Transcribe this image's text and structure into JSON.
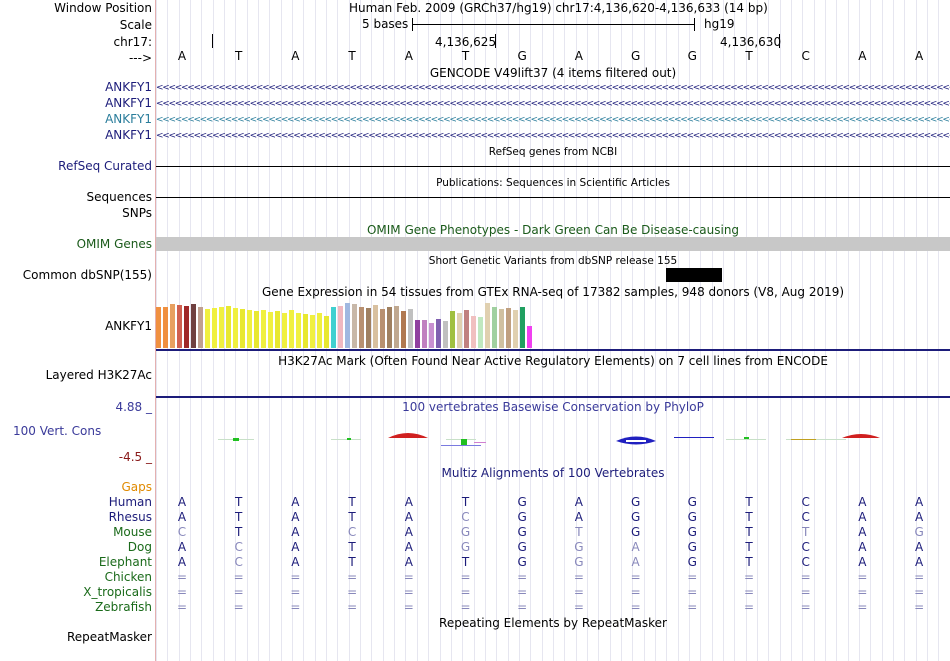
{
  "colors": {
    "navy": "#1c1c7a",
    "teal": "#2a7d9b",
    "omim_green": "#1a5a1a",
    "gaps_orange": "#e08a00",
    "species_green": "#1a6a1a",
    "phylo_label": "#3a3a9a",
    "phylo_neg": "#8a1a1a",
    "multiz_dim": "#8888bb"
  },
  "header": {
    "window_position_label": "Window Position",
    "window_position_value": "Human Feb. 2009 (GRCh37/hg19)   chr17:4,136,620-4,136,633 (14 bp)",
    "scale_label": "Scale",
    "scale_bases": "5 bases",
    "scale_assembly": "hg19",
    "chrom_label": "chr17:",
    "pos_1": "4,136,625",
    "pos_2": "4,136,630",
    "strand_label": "--->",
    "bases": [
      "A",
      "T",
      "A",
      "T",
      "A",
      "T",
      "G",
      "A",
      "G",
      "G",
      "T",
      "C",
      "A",
      "A"
    ]
  },
  "tracks": {
    "gencode_title": "GENCODE V49lift37 (4 items filtered out)",
    "gencode_items": [
      {
        "name": "ANKFY1",
        "color": "#1c1c7a"
      },
      {
        "name": "ANKFY1",
        "color": "#1c1c7a"
      },
      {
        "name": "ANKFY1",
        "color": "#2a7d9b"
      },
      {
        "name": "ANKFY1",
        "color": "#1c1c7a"
      }
    ],
    "arrow_text": "<<<<<<<<<<<<<<<<<<<<<<<<<<<<<<<<<<<<<<<<<<<<<<<<<<<<<<<<<<<<<<<<<<<<<<<<<<<<<<<<<<<<<<<<<<<<<<<<<<<<<<<<<<<<<<<<<<<<<<<<<<<<<<<<<<<<<<<<<<<<<<<<<<<<<<<<<<",
    "refseq_title": "RefSeq genes from NCBI",
    "refseq_label": "RefSeq Curated",
    "publications_title": "Publications: Sequences in Scientific Articles",
    "sequences_label": "Sequences",
    "snps_label": "SNPs",
    "omim_title": "OMIM Gene Phenotypes - Dark Green Can Be Disease-causing",
    "omim_label": "OMIM Genes",
    "dbsnp_title": "Short Genetic Variants from dbSNP release 155",
    "dbsnp_label": "Common dbSNP(155)",
    "gtex_title": "Gene Expression in 54 tissues from GTEx RNA-seq of 17382 samples, 948 donors (V8, Aug 2019)",
    "gtex_label": "ANKFY1",
    "h3k_title": "H3K27Ac Mark (Often Found Near Active Regulatory Elements) on 7 cell lines from ENCODE",
    "h3k_label": "Layered H3K27Ac",
    "phylop_title": "100 vertebrates Basewise Conservation by PhyloP",
    "phylop_max": "4.88 _",
    "phylop_label": "100 Vert. Cons",
    "phylop_min": "-4.5 _",
    "multiz_title": "Multiz Alignments of 100 Vertebrates",
    "gaps_label": "Gaps",
    "repeat_title": "Repeating Elements by RepeatMasker",
    "repeat_label": "RepeatMasker"
  },
  "gtex": {
    "values": [
      0.9,
      0.9,
      0.95,
      0.93,
      0.92,
      0.95,
      0.9,
      0.85,
      0.88,
      0.9,
      0.92,
      0.88,
      0.85,
      0.82,
      0.8,
      0.82,
      0.78,
      0.8,
      0.75,
      0.82,
      0.76,
      0.74,
      0.72,
      0.75,
      0.7,
      0.9,
      0.92,
      0.98,
      0.95,
      0.9,
      0.88,
      0.94,
      0.85,
      0.9,
      0.92,
      0.8,
      0.85,
      0.6,
      0.6,
      0.55,
      0.62,
      0.58,
      0.8,
      0.75,
      0.82,
      0.7,
      0.68,
      0.98,
      0.9,
      0.85,
      0.88,
      0.82,
      0.9,
      0.48
    ],
    "colors": [
      "#f09040",
      "#f09040",
      "#e8a060",
      "#d06050",
      "#a02828",
      "#704040",
      "#c0a090",
      "#f0f040",
      "#f0f040",
      "#f0f040",
      "#e8e830",
      "#f0f040",
      "#e8e830",
      "#f0f040",
      "#e8e830",
      "#f0f040",
      "#f0f040",
      "#e8e830",
      "#f0f040",
      "#f0f040",
      "#f0f040",
      "#e8e830",
      "#f0f040",
      "#f0f040",
      "#e8e830",
      "#40d0d0",
      "#f0b8c0",
      "#a0b8e0",
      "#c8b8a8",
      "#b89070",
      "#a08060",
      "#d8c0a0",
      "#b89070",
      "#a08060",
      "#c0a890",
      "#b07850",
      "#c0c0c0",
      "#9040a0",
      "#c080c0",
      "#c890d0",
      "#8060b0",
      "#c0c0c0",
      "#a0c040",
      "#e0d0b0",
      "#c08080",
      "#f0c0c0",
      "#c0e8c0",
      "#e0d0b0",
      "#a0d0a0",
      "#d0c0a0",
      "#c0a080",
      "#e0d0b0",
      "#20a060",
      "#f040f0"
    ]
  },
  "multiz": {
    "species": [
      {
        "name": "Human",
        "color": "#1c1c7a",
        "bases": [
          "A",
          "T",
          "A",
          "T",
          "A",
          "T",
          "G",
          "A",
          "G",
          "G",
          "T",
          "C",
          "A",
          "A"
        ],
        "dim": [
          false,
          false,
          false,
          false,
          false,
          false,
          false,
          false,
          false,
          false,
          false,
          false,
          false,
          false
        ]
      },
      {
        "name": "Rhesus",
        "color": "#1c1c7a",
        "bases": [
          "A",
          "T",
          "A",
          "T",
          "A",
          "C",
          "G",
          "A",
          "G",
          "G",
          "T",
          "C",
          "A",
          "A"
        ],
        "dim": [
          false,
          false,
          false,
          false,
          false,
          true,
          false,
          false,
          false,
          false,
          false,
          false,
          false,
          false
        ]
      },
      {
        "name": "Mouse",
        "color": "#1a6a1a",
        "bases": [
          "C",
          "T",
          "A",
          "C",
          "A",
          "G",
          "G",
          "T",
          "G",
          "G",
          "T",
          "T",
          "A",
          "G"
        ],
        "dim": [
          true,
          false,
          false,
          true,
          false,
          true,
          false,
          true,
          false,
          false,
          false,
          true,
          false,
          true
        ]
      },
      {
        "name": "Dog",
        "color": "#1a6a1a",
        "bases": [
          "A",
          "C",
          "A",
          "T",
          "A",
          "G",
          "G",
          "G",
          "A",
          "G",
          "T",
          "C",
          "A",
          "A"
        ],
        "dim": [
          false,
          true,
          false,
          false,
          false,
          true,
          false,
          true,
          true,
          false,
          false,
          false,
          false,
          false
        ]
      },
      {
        "name": "Elephant",
        "color": "#1a6a1a",
        "bases": [
          "A",
          "C",
          "A",
          "T",
          "A",
          "T",
          "G",
          "G",
          "A",
          "G",
          "T",
          "C",
          "A",
          "A"
        ],
        "dim": [
          false,
          true,
          false,
          false,
          false,
          false,
          false,
          true,
          true,
          false,
          false,
          false,
          false,
          false
        ]
      },
      {
        "name": "Chicken",
        "color": "#1a6a1a",
        "bases": [
          "=",
          "=",
          "=",
          "=",
          "=",
          "=",
          "=",
          "=",
          "=",
          "=",
          "=",
          "=",
          "=",
          "="
        ],
        "dim": [
          true,
          true,
          true,
          true,
          true,
          true,
          true,
          true,
          true,
          true,
          true,
          true,
          true,
          true
        ]
      },
      {
        "name": "X_tropicalis",
        "color": "#1a6a1a",
        "bases": [
          "=",
          "=",
          "=",
          "=",
          "=",
          "=",
          "=",
          "=",
          "=",
          "=",
          "=",
          "=",
          "=",
          "="
        ],
        "dim": [
          true,
          true,
          true,
          true,
          true,
          true,
          true,
          true,
          true,
          true,
          true,
          true,
          true,
          true
        ]
      },
      {
        "name": "Zebrafish",
        "color": "#1a6a1a",
        "bases": [
          "=",
          "=",
          "=",
          "=",
          "=",
          "=",
          "=",
          "=",
          "=",
          "=",
          "=",
          "=",
          "=",
          "="
        ],
        "dim": [
          true,
          true,
          true,
          true,
          true,
          true,
          true,
          true,
          true,
          true,
          true,
          true,
          true,
          true
        ]
      }
    ]
  }
}
